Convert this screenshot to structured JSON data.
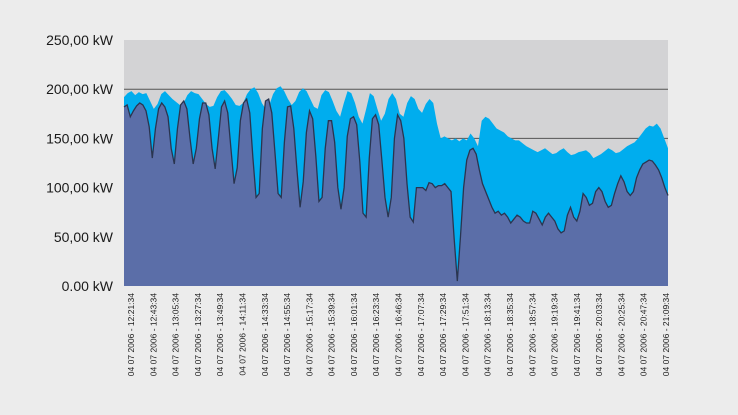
{
  "chart_data": {
    "type": "area",
    "title": "",
    "xlabel": "",
    "ylabel": "",
    "ylim": [
      0,
      250
    ],
    "grid": true,
    "y_ticks": [
      "0.00 kW",
      "50,00 kW",
      "100,00 kW",
      "150,00 kW",
      "200,00 kW",
      "250,00 kW"
    ],
    "y_tick_values": [
      0,
      50,
      100,
      150,
      200,
      250
    ],
    "x_tick_labels": [
      "04 07 2006 - 12:21:34",
      "04 07 2006 - 12:43:34",
      "04 07 2006 - 13:05:34",
      "04 07 2006 - 13:27:34",
      "04 07 2006 - 13:49:34",
      "04 07 2006 - 14:11:34",
      "04 07 2006 - 14:33:34",
      "04 07 2006 - 14:55:34",
      "04 07 2006 - 15:17:34",
      "04 07 2006 - 15:39:34",
      "04 07 2006 - 16:01:34",
      "04 07 2006 - 16:23:34",
      "04 07 2006 - 16:46:34",
      "04 07 2006 - 17:07:34",
      "04 07 2006 - 17:29:34",
      "04 07 2006 - 17:51:34",
      "04 07 2006 - 18:13:34",
      "04 07 2006 - 18:35:34",
      "04 07 2006 - 18:57:34",
      "04 07 2006 - 19:19:34",
      "04 07 2006 - 19:41:34",
      "04 07 2006 - 20:03:34",
      "04 07 2006 - 20:25:34",
      "04 07 2006 - 20:47:34",
      "04 07 2006 - 21:09:34"
    ],
    "colors": {
      "plot_background": "#d3d3d5",
      "upper_area": "#00adee",
      "lower_area": "#5b6ea8",
      "lower_line": "#2a3550",
      "grid": "#555555"
    },
    "series": [
      {
        "values": [
          192,
          196,
          198,
          194,
          197,
          195,
          196,
          188,
          180,
          185,
          195,
          198,
          194,
          190,
          187,
          184,
          186,
          194,
          198,
          196,
          195,
          190,
          185,
          182,
          183,
          192,
          198,
          199,
          195,
          190,
          184,
          183,
          186,
          195,
          200,
          202,
          196,
          186,
          180,
          184,
          195,
          201,
          203,
          198,
          190,
          184,
          188,
          197,
          201,
          198,
          190,
          182,
          180,
          194,
          199,
          197,
          188,
          178,
          172,
          186,
          198,
          196,
          186,
          172,
          165,
          180,
          196,
          193,
          180,
          168,
          175,
          190,
          196,
          190,
          175,
          172,
          186,
          193,
          190,
          180,
          176,
          185,
          190,
          186,
          165,
          150,
          152,
          150,
          148,
          150,
          147,
          150,
          148,
          155,
          150,
          142,
          168,
          172,
          170,
          165,
          160,
          158,
          156,
          152,
          150,
          148,
          148,
          145,
          142,
          140,
          138,
          136,
          138,
          140,
          137,
          134,
          135,
          138,
          140,
          136,
          133,
          134,
          136,
          137,
          138,
          135,
          130,
          132,
          134,
          137,
          140,
          138,
          135,
          136,
          139,
          142,
          144,
          146,
          150,
          155,
          160,
          163,
          162,
          165,
          160,
          150,
          140
        ]
      },
      {
        "values": [
          182,
          184,
          172,
          178,
          183,
          186,
          184,
          178,
          162,
          130,
          160,
          180,
          186,
          182,
          172,
          140,
          124,
          160,
          184,
          188,
          180,
          150,
          124,
          140,
          170,
          186,
          186,
          174,
          140,
          119,
          150,
          182,
          188,
          176,
          140,
          104,
          120,
          168,
          186,
          190,
          176,
          130,
          90,
          94,
          160,
          188,
          190,
          176,
          136,
          94,
          90,
          146,
          182,
          183,
          160,
          118,
          80,
          106,
          156,
          178,
          170,
          132,
          86,
          90,
          140,
          168,
          168,
          146,
          100,
          78,
          100,
          152,
          170,
          172,
          164,
          126,
          74,
          70,
          130,
          170,
          174,
          164,
          128,
          90,
          70,
          90,
          150,
          174,
          168,
          150,
          104,
          70,
          65,
          100,
          100,
          100,
          97,
          105,
          104,
          100,
          102,
          102,
          104,
          100,
          96,
          48,
          5,
          50,
          100,
          128,
          138,
          140,
          134,
          118,
          104,
          96,
          88,
          80,
          74,
          76,
          72,
          74,
          70,
          64,
          68,
          72,
          70,
          66,
          64,
          64,
          76,
          74,
          68,
          62,
          70,
          74,
          70,
          66,
          58,
          54,
          56,
          72,
          80,
          70,
          66,
          76,
          94,
          90,
          82,
          84,
          96,
          100,
          96,
          86,
          80,
          82,
          94,
          104,
          112,
          106,
          96,
          92,
          96,
          110,
          118,
          124,
          126,
          128,
          127,
          123,
          118,
          110,
          100,
          92
        ]
      }
    ]
  }
}
